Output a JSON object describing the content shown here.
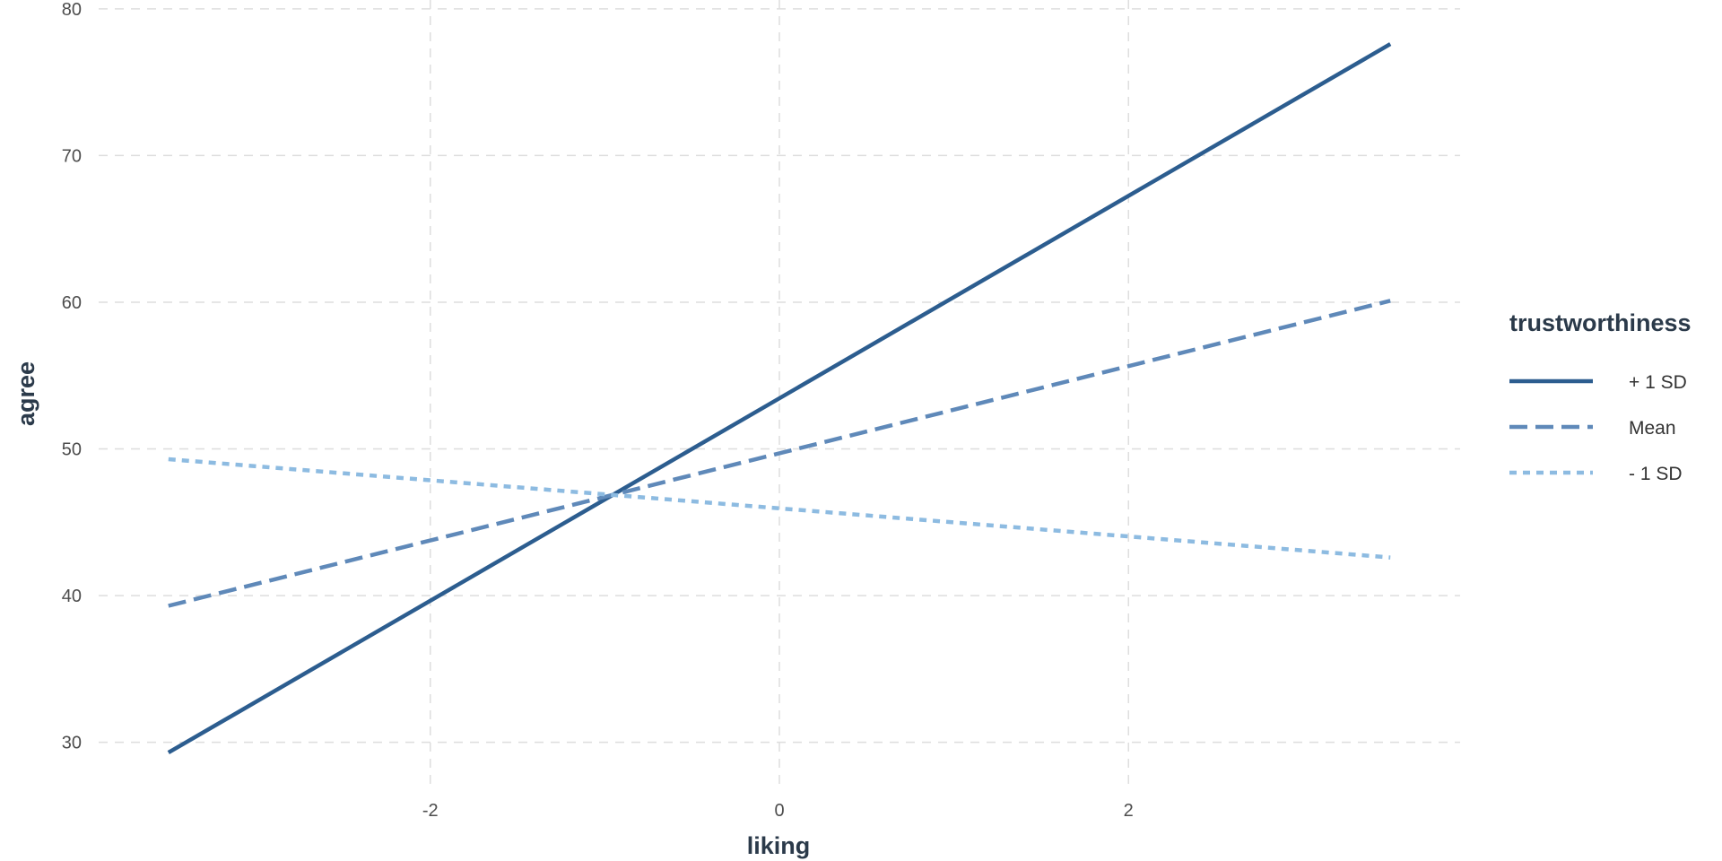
{
  "chart_data": {
    "type": "line",
    "xlabel": "liking",
    "ylabel": "agree",
    "xlim": [
      -3.9,
      3.9
    ],
    "ylim": [
      26.8,
      80.6
    ],
    "x_ticks": [
      -2,
      0,
      2
    ],
    "y_ticks": [
      30,
      40,
      50,
      60,
      70,
      80
    ],
    "grid": true,
    "legend": {
      "title": "trustworthiness",
      "placement": "right"
    },
    "series": [
      {
        "name": "+ 1 SD",
        "style": "solid",
        "color": "#2c5d8f",
        "x": [
          -3.5,
          3.5
        ],
        "y": [
          29.3,
          77.6
        ]
      },
      {
        "name": "Mean",
        "style": "dashed",
        "color": "#5f89b9",
        "x": [
          -3.5,
          3.5
        ],
        "y": [
          39.3,
          60.1
        ]
      },
      {
        "name": "- 1 SD",
        "style": "dotted",
        "color": "#8dbbe1",
        "x": [
          -3.5,
          3.5
        ],
        "y": [
          49.3,
          42.6
        ]
      }
    ]
  }
}
